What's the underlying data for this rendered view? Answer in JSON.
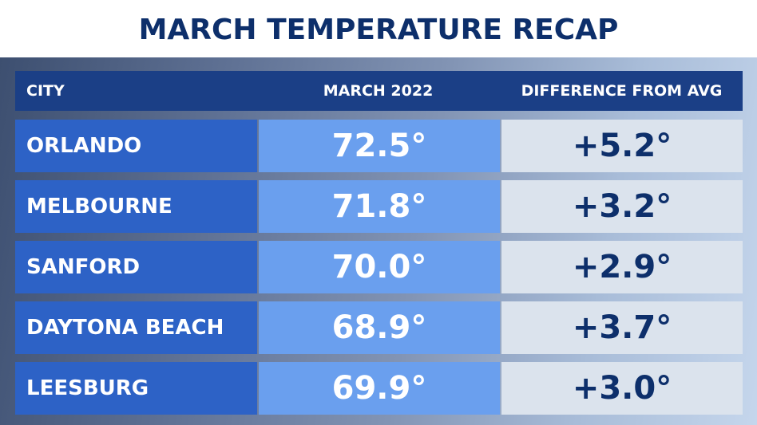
{
  "title": "MARCH TEMPERATURE RECAP",
  "table": {
    "headers": {
      "city": "CITY",
      "march": "MARCH 2022",
      "diff": "DIFFERENCE FROM AVG"
    },
    "rows": [
      {
        "city": "ORLANDO",
        "temp": "72.5°",
        "diff": "+5.2°"
      },
      {
        "city": "MELBOURNE",
        "temp": "71.8°",
        "diff": "+3.2°"
      },
      {
        "city": "SANFORD",
        "temp": "70.0°",
        "diff": "+2.9°"
      },
      {
        "city": "DAYTONA BEACH",
        "temp": "68.9°",
        "diff": "+3.7°"
      },
      {
        "city": "LEESBURG",
        "temp": "69.9°",
        "diff": "+3.0°"
      }
    ]
  },
  "colors": {
    "title": "#0d2f6b",
    "header_bg": "#1b3f86",
    "city_bg": "#2d62c6",
    "temp_bg": "#6a9fee",
    "diff_bg": "#dbe3ed",
    "diff_text": "#0d2f6b"
  }
}
